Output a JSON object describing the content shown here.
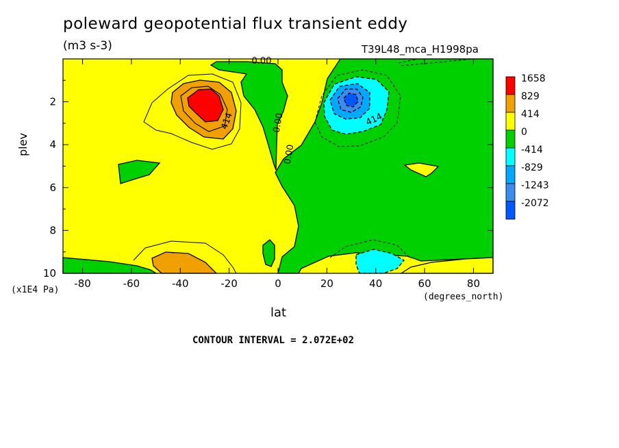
{
  "chart_data": {
    "type": "heatmap",
    "title": "poleward geopotential flux transient eddy",
    "units": "(m3 s-3)",
    "run_id": "T39L48_mca_H1998pa",
    "xlabel": "lat",
    "xunits": "(degrees_north)",
    "ylabel": "plev",
    "yunits": "(x1E4 Pa)",
    "contour_interval_text": "CONTOUR INTERVAL = 2.072E+02",
    "xlim": [
      -88,
      88
    ],
    "ylim": [
      10,
      0
    ],
    "x_ticks": [
      -80,
      -60,
      -40,
      -20,
      0,
      20,
      40,
      60,
      80
    ],
    "y_ticks": [
      2,
      4,
      6,
      8,
      10
    ],
    "legend": {
      "placement": "right",
      "levels": [
        "1658",
        "829",
        "414",
        "0",
        "-414",
        "-829",
        "-1243",
        "-2072"
      ],
      "colors": [
        "#ff0000",
        "#f0a000",
        "#ffff00",
        "#00d000",
        "#00ffff",
        "#00a8ff",
        "#3c8cf0",
        "#0058ff"
      ]
    },
    "contour_labels": [
      "0.00",
      "0.00",
      "0.00",
      "0.00",
      "414",
      "414"
    ],
    "extrema": [
      {
        "lat": -30,
        "plev": 2.1,
        "approx_value": 1658
      },
      {
        "lat": 30,
        "plev": 2.1,
        "approx_value": -2072
      }
    ]
  }
}
